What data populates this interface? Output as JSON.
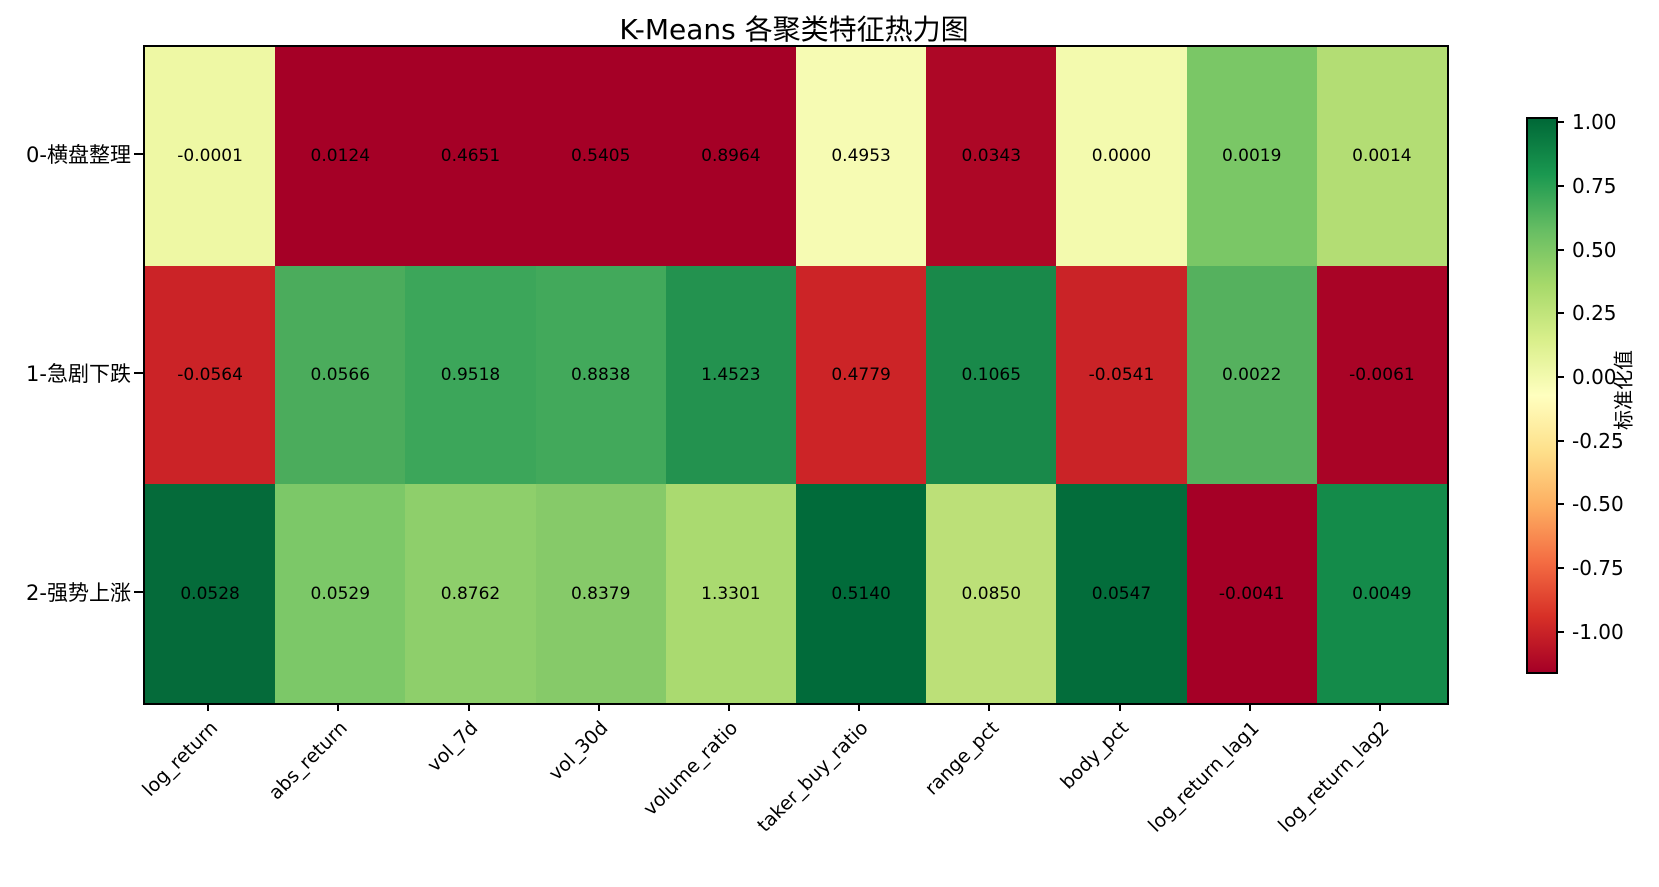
{
  "chart_data": {
    "type": "heatmap",
    "title": "K-Means 各聚类特征热力图",
    "rows": [
      "0-横盘整理",
      "1-急剧下跌",
      "2-强势上涨"
    ],
    "columns": [
      "log_return",
      "abs_return",
      "vol_7d",
      "vol_30d",
      "volume_ratio",
      "taker_buy_ratio",
      "range_pct",
      "body_pct",
      "log_return_lag1",
      "log_return_lag2"
    ],
    "values": [
      [
        -0.0001,
        0.0124,
        0.4651,
        0.5405,
        0.8964,
        0.4953,
        0.0343,
        0.0,
        0.0019,
        0.0014
      ],
      [
        -0.0564,
        0.0566,
        0.9518,
        0.8838,
        1.4523,
        0.4779,
        0.1065,
        -0.0541,
        0.0022,
        -0.0061
      ],
      [
        0.0528,
        0.0529,
        0.8762,
        0.8379,
        1.3301,
        0.514,
        0.085,
        0.0547,
        -0.0041,
        0.0049
      ]
    ],
    "cell_labels": [
      [
        "-0.0001",
        "0.0124",
        "0.4651",
        "0.5405",
        "0.8964",
        "0.4953",
        "0.0343",
        "0.0000",
        "0.0019",
        "0.0014"
      ],
      [
        "-0.0564",
        "0.0566",
        "0.9518",
        "0.8838",
        "1.4523",
        "0.4779",
        "0.1065",
        "-0.0541",
        "0.0022",
        "-0.0061"
      ],
      [
        "0.0528",
        "0.0529",
        "0.8762",
        "0.8379",
        "1.3301",
        "0.5140",
        "0.0850",
        "0.0547",
        "-0.0041",
        "0.0049"
      ]
    ],
    "cell_colors": [
      [
        "#eef8a4",
        "#a50026",
        "#a50026",
        "#a50026",
        "#a50026",
        "#f6fbb3",
        "#ad0726",
        "#f3faae",
        "#7ac766",
        "#b3dd74"
      ],
      [
        "#cb2327",
        "#4bac5c",
        "#3ca65a",
        "#42a95b",
        "#23924f",
        "#cc2427",
        "#19894a",
        "#ca2327",
        "#55b15e",
        "#a90426"
      ],
      [
        "#056b3a",
        "#7cc868",
        "#8ecf6b",
        "#86ca69",
        "#aada70",
        "#016b3a",
        "#bce078",
        "#036d3b",
        "#a50026",
        "#148b4a"
      ]
    ],
    "color_encoding_note": "cell colors encode per-column standardized values, not raw cell numbers",
    "colorbar": {
      "label": "标准化值",
      "colormap": "RdYlGn",
      "ticks": [
        "1.00",
        "0.75",
        "0.50",
        "0.25",
        "0.00",
        "-0.25",
        "-0.50",
        "-0.75",
        "-1.00"
      ],
      "tick_values": [
        1.0,
        0.75,
        0.5,
        0.25,
        0.0,
        -0.25,
        -0.5,
        -0.75,
        -1.0
      ],
      "vmax": 1.02,
      "vmin": -1.15,
      "colormap_stops_top_to_bottom": [
        "#006837",
        "#1a9850",
        "#66bd63",
        "#a6d96a",
        "#d9ef8b",
        "#ffffbf",
        "#fee08b",
        "#fdae61",
        "#f46d43",
        "#d73027",
        "#a50026"
      ]
    },
    "layout": {
      "grid": "off",
      "x_tick_rotation_deg": 45,
      "colorbar_position": "right"
    }
  }
}
